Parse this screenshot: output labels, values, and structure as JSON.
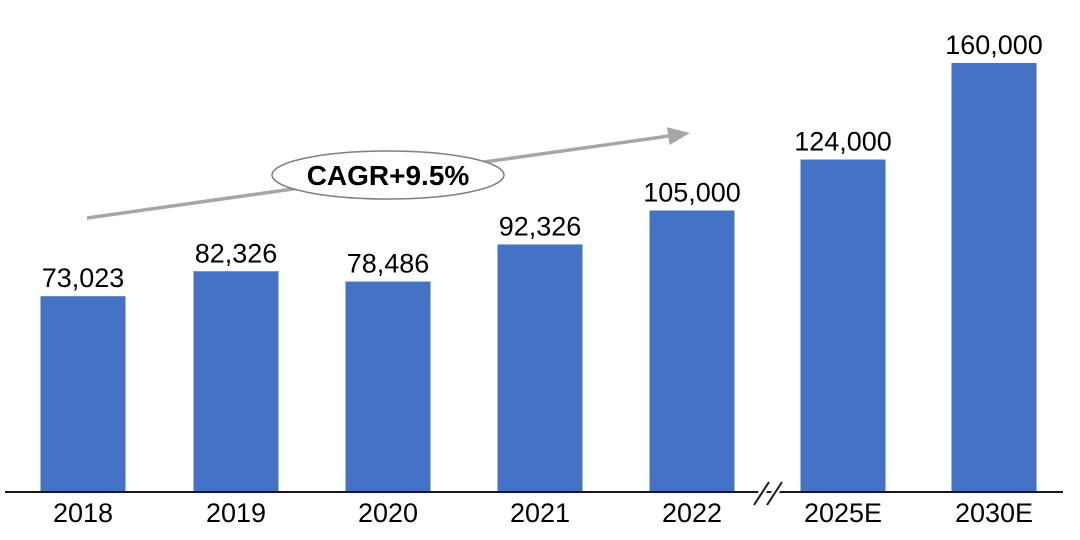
{
  "chart_data": {
    "type": "bar",
    "title": "",
    "xlabel": "",
    "ylabel": "",
    "categories": [
      "2018",
      "2019",
      "2020",
      "2021",
      "2022",
      "2025E",
      "2030E"
    ],
    "values": [
      73023,
      82326,
      78486,
      92326,
      105000,
      124000,
      160000
    ],
    "value_labels": [
      "73,023",
      "82,326",
      "78,486",
      "92,326",
      "105,000",
      "124,000",
      "160,000"
    ],
    "ylim": [
      0,
      160000
    ],
    "grid": false,
    "legend": false,
    "axis_break_between": [
      "2022",
      "2025E"
    ],
    "annotation": {
      "label": "CAGR+9.5%",
      "shape": "ellipse",
      "arrow": true
    },
    "colors": {
      "bar": "#4472C4",
      "arrow": "#A6A6A6",
      "ellipse_stroke": "#7F7F7F",
      "ellipse_fill": "#FFFFFF",
      "text": "#000000",
      "axis": "#1A1A1A",
      "background": "#FFFFFF"
    }
  }
}
